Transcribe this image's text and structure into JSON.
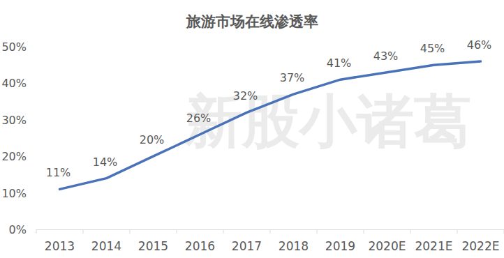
{
  "chart_data": {
    "type": "line",
    "title": "旅游市场在线渗透率",
    "watermark": "新股小诸葛",
    "categories": [
      "2013",
      "2014",
      "2015",
      "2016",
      "2017",
      "2018",
      "2019",
      "2020E",
      "2021E",
      "2022E"
    ],
    "values": [
      11,
      14,
      20,
      26,
      32,
      37,
      41,
      43,
      45,
      46
    ],
    "value_labels": [
      "11%",
      "14%",
      "20%",
      "26%",
      "32%",
      "37%",
      "41%",
      "43%",
      "45%",
      "46%"
    ],
    "color": "#4a72b8",
    "ylim": [
      0,
      50
    ],
    "yticks": [
      {
        "value": 0,
        "label": "0%"
      },
      {
        "value": 10,
        "label": "10%"
      },
      {
        "value": 20,
        "label": "20%"
      },
      {
        "value": 30,
        "label": "30%"
      },
      {
        "value": 40,
        "label": "40%"
      },
      {
        "value": 50,
        "label": "50%"
      }
    ],
    "grid": false,
    "data_labels": true
  }
}
